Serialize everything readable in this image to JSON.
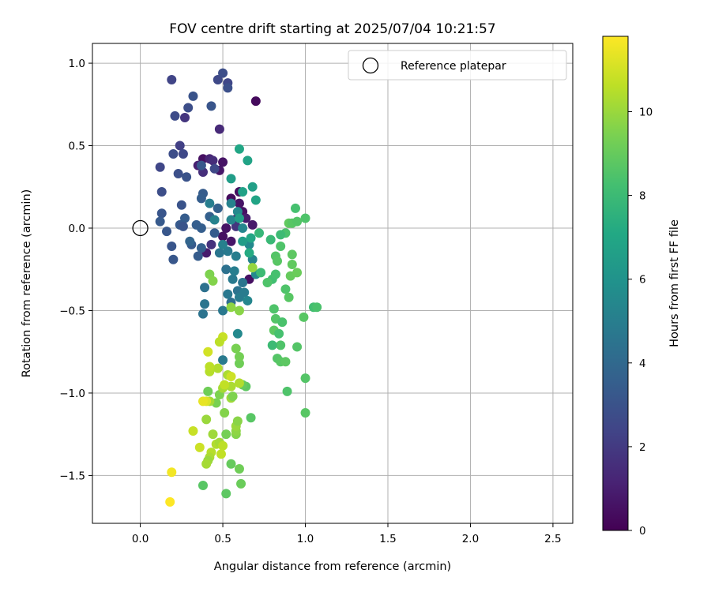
{
  "chart_data": {
    "type": "scatter",
    "title": "FOV centre drift starting at 2025/07/04 10:21:57",
    "xlabel": "Angular distance from reference (arcmin)",
    "ylabel": "Rotation from reference (arcmin)",
    "xlim": [
      -0.29,
      2.62
    ],
    "ylim": [
      -1.79,
      1.12
    ],
    "x_ticks": [
      0.0,
      0.5,
      1.0,
      1.5,
      2.0,
      2.5
    ],
    "x_tick_labels": [
      "0.0",
      "0.5",
      "1.0",
      "1.5",
      "2.0",
      "2.5"
    ],
    "y_ticks": [
      -1.5,
      -1.0,
      -0.5,
      0.0,
      0.5,
      1.0
    ],
    "y_tick_labels": [
      "−1.5",
      "−1.0",
      "−0.5",
      "0.0",
      "0.5",
      "1.0"
    ],
    "grid": true,
    "legend": {
      "position": "top-right",
      "entries": [
        {
          "label": "Reference platepar",
          "marker": "open-circle"
        }
      ]
    },
    "reference_point": {
      "x": 0.0,
      "y": 0.0
    },
    "colorbar": {
      "label": "Hours from first FF file",
      "min": 0,
      "max": 11.8,
      "ticks": [
        0,
        2,
        4,
        6,
        8,
        10
      ],
      "tick_labels": [
        "0",
        "2",
        "4",
        "6",
        "8",
        "10"
      ],
      "colormap": "viridis"
    },
    "points": [
      [
        0.7,
        0.77,
        0.3
      ],
      [
        0.38,
        0.42,
        0.5
      ],
      [
        0.5,
        0.4,
        0.6
      ],
      [
        0.48,
        0.35,
        0.7
      ],
      [
        0.55,
        0.18,
        0.3
      ],
      [
        0.6,
        0.22,
        0.4
      ],
      [
        0.62,
        0.1,
        0.5
      ],
      [
        0.57,
        0.05,
        0.4
      ],
      [
        0.52,
        0.0,
        0.6
      ],
      [
        0.68,
        0.02,
        0.8
      ],
      [
        0.4,
        -0.15,
        0.9
      ],
      [
        0.5,
        -0.05,
        0.5
      ],
      [
        0.55,
        -0.08,
        0.7
      ],
      [
        0.66,
        -0.31,
        0.5
      ],
      [
        0.35,
        0.38,
        1.0
      ],
      [
        0.6,
        0.15,
        0.6
      ],
      [
        0.64,
        0.06,
        0.9
      ],
      [
        0.42,
        0.42,
        1.2
      ],
      [
        0.48,
        0.6,
        1.4
      ],
      [
        0.27,
        0.67,
        1.8
      ],
      [
        0.44,
        0.41,
        1.5
      ],
      [
        0.38,
        0.34,
        1.6
      ],
      [
        0.43,
        -0.1,
        1.7
      ],
      [
        0.47,
        0.12,
        1.9
      ],
      [
        0.58,
        0.01,
        1.8
      ],
      [
        0.19,
        0.9,
        2.4
      ],
      [
        0.47,
        0.9,
        2.6
      ],
      [
        0.5,
        0.94,
        2.8
      ],
      [
        0.53,
        0.88,
        2.5
      ],
      [
        0.53,
        0.85,
        2.9
      ],
      [
        0.21,
        0.68,
        2.7
      ],
      [
        0.32,
        0.8,
        3.0
      ],
      [
        0.29,
        0.73,
        2.8
      ],
      [
        0.43,
        0.74,
        3.1
      ],
      [
        0.24,
        0.5,
        2.2
      ],
      [
        0.12,
        0.37,
        2.5
      ],
      [
        0.2,
        0.45,
        2.8
      ],
      [
        0.26,
        0.45,
        2.6
      ],
      [
        0.23,
        0.33,
        2.9
      ],
      [
        0.28,
        0.31,
        3.0
      ],
      [
        0.37,
        0.38,
        3.2
      ],
      [
        0.45,
        0.36,
        2.6
      ],
      [
        0.13,
        0.22,
        2.8
      ],
      [
        0.25,
        0.14,
        3.0
      ],
      [
        0.13,
        0.09,
        3.1
      ],
      [
        0.12,
        0.04,
        3.3
      ],
      [
        0.27,
        0.06,
        3.4
      ],
      [
        0.38,
        0.21,
        3.4
      ],
      [
        0.37,
        0.18,
        3.5
      ],
      [
        0.16,
        -0.02,
        3.2
      ],
      [
        0.24,
        0.02,
        3.3
      ],
      [
        0.26,
        0.01,
        3.0
      ],
      [
        0.37,
        0.0,
        3.5
      ],
      [
        0.37,
        -0.12,
        3.6
      ],
      [
        0.31,
        -0.1,
        3.3
      ],
      [
        0.19,
        -0.11,
        3.1
      ],
      [
        0.2,
        -0.19,
        3.2
      ],
      [
        0.35,
        -0.17,
        3.4
      ],
      [
        0.42,
        0.07,
        3.6
      ],
      [
        0.45,
        -0.03,
        3.4
      ],
      [
        0.47,
        0.12,
        3.7
      ],
      [
        0.3,
        -0.08,
        3.8
      ],
      [
        0.34,
        0.02,
        3.5
      ],
      [
        0.39,
        -0.36,
        4.4
      ],
      [
        0.39,
        -0.46,
        4.6
      ],
      [
        0.38,
        -0.52,
        4.5
      ],
      [
        0.5,
        -0.5,
        4.7
      ],
      [
        0.55,
        -0.45,
        4.3
      ],
      [
        0.59,
        -0.38,
        4.5
      ],
      [
        0.56,
        -0.31,
        4.8
      ],
      [
        0.62,
        -0.33,
        4.6
      ],
      [
        0.6,
        -0.42,
        4.9
      ],
      [
        0.52,
        -0.25,
        4.4
      ],
      [
        0.48,
        -0.15,
        4.6
      ],
      [
        0.53,
        -0.14,
        4.8
      ],
      [
        0.58,
        -0.17,
        5.0
      ],
      [
        0.5,
        -0.1,
        5.1
      ],
      [
        0.45,
        0.05,
        5.2
      ],
      [
        0.55,
        0.05,
        5.3
      ],
      [
        0.62,
        0.0,
        5.4
      ],
      [
        0.66,
        -0.1,
        5.5
      ],
      [
        0.68,
        -0.19,
        5.3
      ],
      [
        0.7,
        -0.28,
        5.6
      ],
      [
        0.57,
        -0.26,
        5.0
      ],
      [
        0.53,
        -0.4,
        4.7
      ],
      [
        0.59,
        -0.64,
        5.5
      ],
      [
        0.5,
        -0.8,
        4.8
      ],
      [
        0.63,
        -0.39,
        4.9
      ],
      [
        0.65,
        -0.44,
        5.4
      ],
      [
        0.42,
        0.15,
        5.0
      ],
      [
        0.55,
        0.15,
        5.2
      ],
      [
        0.59,
        0.1,
        5.5
      ],
      [
        0.55,
        0.3,
        6.5
      ],
      [
        0.6,
        0.48,
        7.0
      ],
      [
        0.65,
        0.41,
        6.8
      ],
      [
        0.68,
        0.25,
        6.6
      ],
      [
        0.7,
        0.17,
        6.9
      ],
      [
        0.62,
        0.22,
        6.7
      ],
      [
        0.67,
        -0.06,
        7.0
      ],
      [
        0.62,
        -0.08,
        6.5
      ],
      [
        0.6,
        0.06,
        6.6
      ],
      [
        0.66,
        -0.15,
        7.2
      ],
      [
        0.72,
        -0.03,
        7.8
      ],
      [
        0.79,
        -0.07,
        7.9
      ],
      [
        0.73,
        -0.27,
        8.0
      ],
      [
        0.8,
        -0.31,
        8.2
      ],
      [
        0.82,
        -0.28,
        8.3
      ],
      [
        0.77,
        -0.33,
        8.5
      ],
      [
        0.82,
        -0.17,
        8.6
      ],
      [
        0.83,
        -0.2,
        8.7
      ],
      [
        0.85,
        -0.11,
        8.5
      ],
      [
        0.88,
        -0.03,
        8.4
      ],
      [
        0.85,
        -0.04,
        8.0
      ],
      [
        0.9,
        0.03,
        8.9
      ],
      [
        0.92,
        0.03,
        8.7
      ],
      [
        0.95,
        0.04,
        8.6
      ],
      [
        0.94,
        0.12,
        8.3
      ],
      [
        1.0,
        0.06,
        8.5
      ],
      [
        0.92,
        -0.16,
        8.8
      ],
      [
        0.92,
        -0.22,
        8.9
      ],
      [
        0.91,
        -0.29,
        9.0
      ],
      [
        0.95,
        -0.27,
        9.1
      ],
      [
        0.88,
        -0.37,
        8.5
      ],
      [
        0.9,
        -0.42,
        8.7
      ],
      [
        0.81,
        -0.49,
        8.5
      ],
      [
        0.82,
        -0.55,
        8.6
      ],
      [
        0.86,
        -0.57,
        8.4
      ],
      [
        0.81,
        -0.62,
        8.8
      ],
      [
        0.84,
        -0.64,
        8.3
      ],
      [
        0.85,
        -0.71,
        8.5
      ],
      [
        0.8,
        -0.71,
        8.0
      ],
      [
        0.83,
        -0.79,
        8.6
      ],
      [
        0.85,
        -0.81,
        8.7
      ],
      [
        0.88,
        -0.81,
        8.8
      ],
      [
        0.95,
        -0.72,
        8.6
      ],
      [
        0.99,
        -0.54,
        8.7
      ],
      [
        1.05,
        -0.48,
        8.2
      ],
      [
        1.07,
        -0.48,
        8.4
      ],
      [
        1.0,
        -0.91,
        8.6
      ],
      [
        0.89,
        -0.99,
        8.5
      ],
      [
        1.0,
        -1.12,
        8.7
      ],
      [
        0.67,
        -1.15,
        8.7
      ],
      [
        0.64,
        -0.96,
        8.8
      ],
      [
        0.62,
        -0.95,
        9.0
      ],
      [
        0.6,
        -0.82,
        9.2
      ],
      [
        0.6,
        -0.78,
        9.3
      ],
      [
        0.58,
        -0.73,
        9.4
      ],
      [
        0.42,
        -0.28,
        9.5
      ],
      [
        0.44,
        -0.32,
        9.6
      ],
      [
        0.55,
        -0.48,
        9.8
      ],
      [
        0.6,
        -0.5,
        9.7
      ],
      [
        0.68,
        -0.24,
        9.9
      ],
      [
        0.38,
        -1.56,
        8.7
      ],
      [
        0.52,
        -1.61,
        8.8
      ],
      [
        0.55,
        -1.43,
        9.0
      ],
      [
        0.6,
        -1.46,
        9.2
      ],
      [
        0.61,
        -1.55,
        9.1
      ],
      [
        0.41,
        -0.99,
        9.2
      ],
      [
        0.46,
        -1.06,
        9.4
      ],
      [
        0.48,
        -1.01,
        9.5
      ],
      [
        0.51,
        -1.12,
        9.6
      ],
      [
        0.52,
        -1.25,
        9.3
      ],
      [
        0.58,
        -1.25,
        9.6
      ],
      [
        0.58,
        -1.23,
        9.8
      ],
      [
        0.58,
        -1.2,
        10.0
      ],
      [
        0.55,
        -0.96,
        10.3
      ],
      [
        0.5,
        -0.97,
        10.2
      ],
      [
        0.53,
        -0.89,
        10.3
      ],
      [
        0.55,
        -1.03,
        10.1
      ],
      [
        0.47,
        -0.85,
        10.4
      ],
      [
        0.42,
        -0.87,
        10.5
      ],
      [
        0.42,
        -0.84,
        10.6
      ],
      [
        0.4,
        -1.16,
        10.0
      ],
      [
        0.42,
        -1.05,
        10.2
      ],
      [
        0.44,
        -1.25,
        10.1
      ],
      [
        0.46,
        -1.31,
        10.4
      ],
      [
        0.48,
        -1.3,
        10.2
      ],
      [
        0.5,
        -1.32,
        10.6
      ],
      [
        0.49,
        -1.37,
        10.7
      ],
      [
        0.43,
        -1.36,
        10.5
      ],
      [
        0.42,
        -1.39,
        10.3
      ],
      [
        0.41,
        -1.41,
        10.0
      ],
      [
        0.4,
        -1.43,
        10.2
      ],
      [
        0.36,
        -1.33,
        10.9
      ],
      [
        0.32,
        -1.23,
        10.8
      ],
      [
        0.5,
        -0.66,
        10.8
      ],
      [
        0.48,
        -0.69,
        10.6
      ],
      [
        0.41,
        -0.75,
        11.0
      ],
      [
        0.4,
        -1.05,
        11.2
      ],
      [
        0.38,
        -1.05,
        11.4
      ],
      [
        0.59,
        -1.17,
        9.7
      ],
      [
        0.6,
        -0.94,
        10.4
      ],
      [
        0.19,
        -1.48,
        11.6
      ],
      [
        0.18,
        -1.66,
        11.8
      ],
      [
        0.55,
        -0.9,
        10.9
      ],
      [
        0.51,
        -0.95,
        10.7
      ],
      [
        0.56,
        -1.02,
        9.5
      ]
    ]
  }
}
